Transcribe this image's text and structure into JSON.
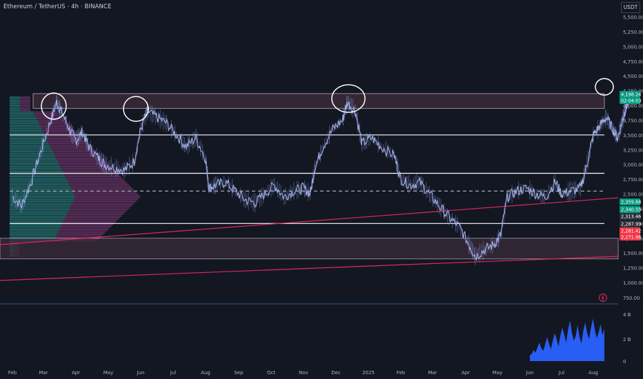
{
  "header": {
    "title": "Ethereum / TetherUS · 4h · BINANCE",
    "currency": "USDT"
  },
  "colors": {
    "background": "#131722",
    "candle": "#b0bdf0",
    "zone": "#3a2a38",
    "zone_border": "#cfc7d6",
    "trendline": "#e0295c",
    "level_line": "#ffffff",
    "volume": "#2962ff",
    "profile_up": "#2a8f88",
    "profile_down": "#8a3d80",
    "price_green": "#089981",
    "price_red": "#f23645"
  },
  "chart_data": {
    "type": "line",
    "subtype": "candlestick-approximation",
    "x": [
      "Feb",
      "Mar",
      "Apr",
      "May",
      "Jun",
      "Jul",
      "Aug",
      "Sep",
      "Oct",
      "Nov",
      "Dec",
      "2025",
      "Feb",
      "Mar",
      "Apr",
      "May",
      "Jun",
      "Jul",
      "Aug"
    ],
    "price_axis_ticks": [
      "5,500.00",
      "5,250.00",
      "5,000.00",
      "4,750.00",
      "4,500.00",
      "4,250.00",
      "4,000.00",
      "3,750.00",
      "3,500.00",
      "3,250.00",
      "3,000.00",
      "2,750.00",
      "2,500.00",
      "2,250.00",
      "2,000.00",
      "1,750.00",
      "1,500.00",
      "1,250.00",
      "1,000.00",
      "750.00"
    ],
    "ylim": [
      750,
      5600
    ],
    "series": [
      {
        "values": [
          [
            0,
            2450
          ],
          [
            0.3,
            2300
          ],
          [
            0.6,
            2700
          ],
          [
            0.9,
            3200
          ],
          [
            1.2,
            3700
          ],
          [
            1.4,
            4050
          ],
          [
            1.55,
            3900
          ],
          [
            1.8,
            3600
          ],
          [
            2.0,
            3400
          ],
          [
            2.2,
            3550
          ],
          [
            2.4,
            3300
          ],
          [
            2.7,
            3100
          ],
          [
            2.9,
            3000
          ],
          [
            3.2,
            2950
          ],
          [
            3.5,
            2900
          ],
          [
            3.8,
            3050
          ],
          [
            4.0,
            3600
          ],
          [
            4.2,
            3900
          ],
          [
            4.5,
            3800
          ],
          [
            4.8,
            3700
          ],
          [
            5.1,
            3500
          ],
          [
            5.4,
            3300
          ],
          [
            5.7,
            3450
          ],
          [
            6.0,
            3100
          ],
          [
            6.1,
            2600
          ],
          [
            6.3,
            2650
          ],
          [
            6.6,
            2700
          ],
          [
            6.9,
            2550
          ],
          [
            7.2,
            2400
          ],
          [
            7.5,
            2350
          ],
          [
            7.8,
            2500
          ],
          [
            8.1,
            2650
          ],
          [
            8.4,
            2450
          ],
          [
            8.7,
            2550
          ],
          [
            9.0,
            2600
          ],
          [
            9.2,
            2500
          ],
          [
            9.35,
            2950
          ],
          [
            9.6,
            3300
          ],
          [
            9.9,
            3600
          ],
          [
            10.2,
            3750
          ],
          [
            10.35,
            4050
          ],
          [
            10.6,
            3900
          ],
          [
            10.8,
            3350
          ],
          [
            11.1,
            3450
          ],
          [
            11.4,
            3300
          ],
          [
            11.8,
            3150
          ],
          [
            12.0,
            2750
          ],
          [
            12.3,
            2650
          ],
          [
            12.6,
            2700
          ],
          [
            12.9,
            2500
          ],
          [
            13.2,
            2300
          ],
          [
            13.5,
            2100
          ],
          [
            13.8,
            1950
          ],
          [
            14.1,
            1650
          ],
          [
            14.3,
            1450
          ],
          [
            14.6,
            1550
          ],
          [
            14.9,
            1650
          ],
          [
            15.1,
            1800
          ],
          [
            15.3,
            2450
          ],
          [
            15.6,
            2550
          ],
          [
            15.9,
            2600
          ],
          [
            16.2,
            2500
          ],
          [
            16.5,
            2450
          ],
          [
            16.8,
            2700
          ],
          [
            17.0,
            2500
          ],
          [
            17.3,
            2550
          ],
          [
            17.6,
            2600
          ],
          [
            17.8,
            3000
          ],
          [
            18.0,
            3500
          ],
          [
            18.2,
            3650
          ],
          [
            18.4,
            3800
          ],
          [
            18.6,
            3600
          ],
          [
            18.75,
            3450
          ],
          [
            18.9,
            3750
          ],
          [
            19.0,
            3950
          ],
          [
            19.1,
            4100
          ]
        ]
      }
    ],
    "overlays": {
      "resistance_zone": [
        3950,
        4200
      ],
      "support_zone": [
        1400,
        1750
      ],
      "horizontal_levels": [
        3500,
        2850,
        2000
      ],
      "dashed_level": 2550
    },
    "price_labels": [
      {
        "text": "4,198.24",
        "color": "green"
      },
      {
        "text": "02:04:03",
        "color": "green"
      },
      {
        "text": "2,359.68",
        "color": "green"
      },
      {
        "text": "2,340.55",
        "color": "green"
      },
      {
        "text": "2,313.46",
        "color": "gray"
      },
      {
        "text": "2,287.99",
        "color": "gray"
      },
      {
        "text": "2,281.42",
        "color": "red"
      },
      {
        "text": "2,271.98",
        "color": "red"
      }
    ],
    "volume_axis_ticks": [
      "4 B",
      "2 B",
      "0"
    ],
    "volume_values": [
      0.6,
      0.8,
      1.2,
      0.9,
      1.5,
      2.0,
      1.4,
      1.1,
      1.8,
      2.6,
      1.9,
      1.3,
      2.2,
      3.0,
      2.4,
      1.6,
      2.8,
      3.6,
      2.9,
      2.0,
      3.4,
      4.4,
      3.1,
      2.2,
      2.7,
      3.9,
      2.6,
      1.9,
      3.3,
      4.2,
      3.0,
      2.4,
      3.6,
      4.6,
      3.4,
      2.5,
      3.1,
      4.0,
      2.8,
      3.5
    ],
    "grid": false
  }
}
